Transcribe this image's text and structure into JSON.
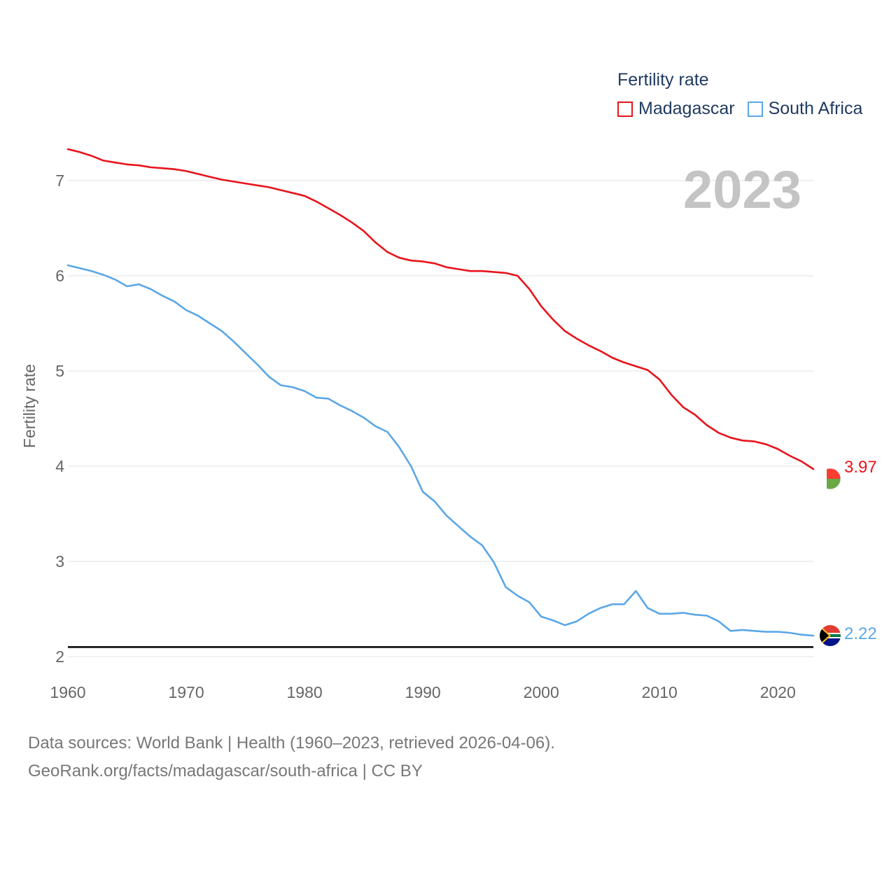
{
  "chart_data": {
    "type": "line",
    "title": "Fertility rate",
    "ylabel": "Fertility rate",
    "xlabel": "",
    "year_label": "2023",
    "x": [
      1960,
      1961,
      1962,
      1963,
      1964,
      1965,
      1966,
      1967,
      1968,
      1969,
      1970,
      1971,
      1972,
      1973,
      1974,
      1975,
      1976,
      1977,
      1978,
      1979,
      1980,
      1981,
      1982,
      1983,
      1984,
      1985,
      1986,
      1987,
      1988,
      1989,
      1990,
      1991,
      1992,
      1993,
      1994,
      1995,
      1996,
      1997,
      1998,
      1999,
      2000,
      2001,
      2002,
      2003,
      2004,
      2005,
      2006,
      2007,
      2008,
      2009,
      2010,
      2011,
      2012,
      2013,
      2014,
      2015,
      2016,
      2017,
      2018,
      2019,
      2020,
      2021,
      2022,
      2023
    ],
    "xlim": [
      1960,
      2023
    ],
    "ylim": [
      2,
      7.5
    ],
    "xticks": [
      "1960",
      "1970",
      "1980",
      "1990",
      "2000",
      "2010",
      "2020"
    ],
    "yticks": [
      "2",
      "3",
      "4",
      "5",
      "6",
      "7"
    ],
    "reference_line": 2.1,
    "grid": true,
    "legend_position": "top-right",
    "series": [
      {
        "name": "Madagascar",
        "color": "#e8141b",
        "end_label": "3.97",
        "values": [
          7.33,
          7.3,
          7.26,
          7.21,
          7.19,
          7.17,
          7.16,
          7.14,
          7.13,
          7.12,
          7.1,
          7.07,
          7.04,
          7.01,
          6.99,
          6.97,
          6.95,
          6.93,
          6.9,
          6.87,
          6.84,
          6.78,
          6.71,
          6.64,
          6.56,
          6.47,
          6.35,
          6.25,
          6.19,
          6.16,
          6.15,
          6.13,
          6.09,
          6.07,
          6.05,
          6.05,
          6.04,
          6.03,
          6.0,
          5.86,
          5.68,
          5.54,
          5.42,
          5.34,
          5.27,
          5.21,
          5.14,
          5.09,
          5.05,
          5.01,
          4.91,
          4.75,
          4.62,
          4.54,
          4.43,
          4.35,
          4.3,
          4.27,
          4.26,
          4.23,
          4.18,
          4.11,
          4.05,
          3.97
        ]
      },
      {
        "name": "South Africa",
        "color": "#5ba7e6",
        "end_label": "2.22",
        "values": [
          6.11,
          6.08,
          6.05,
          6.01,
          5.96,
          5.89,
          5.91,
          5.86,
          5.79,
          5.73,
          5.64,
          5.58,
          5.5,
          5.42,
          5.31,
          5.19,
          5.07,
          4.94,
          4.85,
          4.83,
          4.79,
          4.72,
          4.71,
          4.64,
          4.58,
          4.51,
          4.42,
          4.36,
          4.2,
          4.0,
          3.73,
          3.63,
          3.48,
          3.37,
          3.26,
          3.17,
          2.99,
          2.73,
          2.64,
          2.57,
          2.42,
          2.38,
          2.33,
          2.37,
          2.45,
          2.51,
          2.55,
          2.55,
          2.69,
          2.51,
          2.45,
          2.45,
          2.46,
          2.44,
          2.43,
          2.37,
          2.27,
          2.28,
          2.27,
          2.26,
          2.26,
          2.25,
          2.23,
          2.22
        ]
      }
    ]
  },
  "legend": {
    "title": "Fertility rate",
    "items": [
      {
        "label": "Madagascar",
        "color": "#e8141b"
      },
      {
        "label": "South Africa",
        "color": "#5ba7e6"
      }
    ]
  },
  "footer": {
    "line1": "Data sources: World Bank | Health (1960–2023, retrieved 2026-04-06).",
    "line2": "GeoRank.org/facts/madagascar/south-africa | CC BY"
  }
}
